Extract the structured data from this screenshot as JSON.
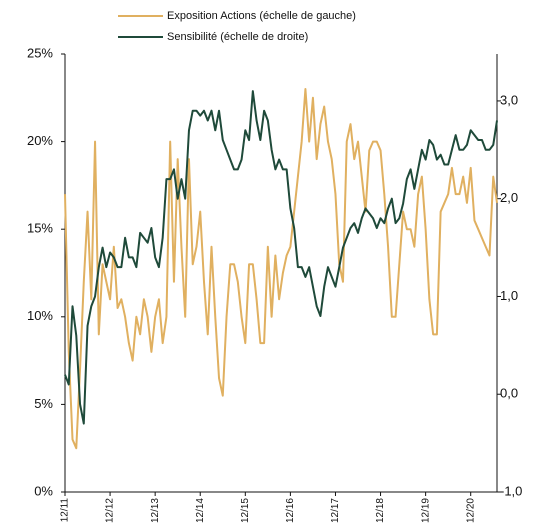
{
  "chart_data": {
    "type": "line",
    "x": [
      0,
      1,
      2,
      3,
      4,
      5,
      6,
      7,
      8,
      9,
      10,
      11,
      12,
      13,
      14,
      15,
      16,
      17,
      18,
      19,
      20,
      21,
      22,
      23,
      24,
      25,
      26,
      27,
      28,
      29,
      30,
      31,
      32,
      33,
      34,
      35,
      36,
      37,
      38,
      39,
      40,
      41,
      42,
      43,
      44,
      45,
      46,
      47,
      48,
      49,
      50,
      51,
      52,
      53,
      54,
      55,
      56,
      57,
      58,
      59,
      60,
      61,
      62,
      63,
      64,
      65,
      66,
      67,
      68,
      69,
      70,
      71,
      72,
      73,
      74,
      75,
      76,
      77,
      78,
      79,
      80,
      81,
      82,
      83,
      84,
      85,
      86,
      87,
      88,
      89,
      90,
      91,
      92,
      93,
      94,
      95,
      96,
      97,
      98,
      99,
      100,
      101,
      102,
      103,
      104,
      105,
      106,
      107,
      108,
      109,
      110,
      111,
      112,
      113,
      114,
      115
    ],
    "series": [
      {
        "name": "Exposition Actions (échelle de gauche)",
        "color": "#e0b060",
        "values": [
          17,
          8,
          3,
          2.5,
          7,
          12,
          16,
          11,
          20,
          9,
          13,
          12,
          11,
          14,
          10.5,
          11,
          10,
          8.5,
          7.5,
          10,
          9,
          11,
          10,
          8,
          10,
          11,
          8.5,
          10,
          20,
          12,
          19,
          14,
          10,
          19,
          13,
          14,
          16,
          12,
          9,
          14,
          10,
          6.5,
          5.5,
          10,
          13,
          13,
          12,
          10,
          8.5,
          13,
          13,
          11,
          8.5,
          8.5,
          14,
          10,
          13.5,
          11,
          12.5,
          13.5,
          14,
          16,
          18,
          20,
          23,
          20,
          22.5,
          19,
          21,
          22,
          20,
          19,
          17,
          13,
          12,
          20,
          21,
          19,
          20,
          18,
          16,
          19.5,
          20,
          20,
          19.5,
          17,
          14,
          10,
          10,
          13,
          16,
          15,
          15,
          14,
          17,
          18,
          15,
          11,
          9,
          9,
          16,
          16.5,
          17,
          18.5,
          17,
          17,
          18,
          16.5,
          18.5,
          15.5,
          15,
          14.5,
          14,
          13.5,
          18,
          16.5
        ]
      },
      {
        "name": "Sensibilité (échelle de droite)",
        "color": "#1f4a3a",
        "axis": "y2",
        "values": [
          0.2,
          0.1,
          0.9,
          0.6,
          -0.1,
          -0.3,
          0.7,
          0.9,
          1.0,
          1.3,
          1.5,
          1.3,
          1.45,
          1.4,
          1.3,
          1.3,
          1.6,
          1.4,
          1.4,
          1.3,
          1.65,
          1.6,
          1.55,
          1.7,
          1.4,
          1.3,
          1.6,
          2.2,
          2.2,
          2.3,
          2.0,
          2.2,
          2.0,
          2.7,
          2.9,
          2.9,
          2.85,
          2.9,
          2.8,
          2.9,
          2.7,
          2.9,
          2.6,
          2.5,
          2.4,
          2.3,
          2.3,
          2.4,
          2.7,
          2.6,
          3.1,
          2.8,
          2.6,
          2.9,
          2.8,
          2.5,
          2.3,
          2.4,
          2.3,
          2.3,
          1.9,
          1.7,
          1.3,
          1.3,
          1.2,
          1.3,
          1.1,
          0.9,
          0.8,
          1.1,
          1.3,
          1.2,
          1.1,
          1.3,
          1.5,
          1.6,
          1.7,
          1.75,
          1.65,
          1.8,
          1.9,
          1.85,
          1.8,
          1.7,
          1.8,
          1.75,
          1.9,
          2.0,
          1.75,
          1.8,
          1.95,
          2.2,
          2.3,
          2.1,
          2.3,
          2.5,
          2.4,
          2.6,
          2.55,
          2.4,
          2.45,
          2.35,
          2.35,
          2.5,
          2.65,
          2.5,
          2.5,
          2.55,
          2.7,
          2.65,
          2.6,
          2.6,
          2.5,
          2.5,
          2.55,
          2.8
        ]
      }
    ],
    "xlim": [
      0,
      115
    ],
    "xticks": [
      {
        "value": 0,
        "label": "12/11"
      },
      {
        "value": 12,
        "label": "12/12"
      },
      {
        "value": 24,
        "label": "12/13"
      },
      {
        "value": 36,
        "label": "12/14"
      },
      {
        "value": 48,
        "label": "12/15"
      },
      {
        "value": 60,
        "label": "12/16"
      },
      {
        "value": 72,
        "label": "12/17"
      },
      {
        "value": 84,
        "label": "12/18"
      },
      {
        "value": 96,
        "label": "12/19"
      },
      {
        "value": 108,
        "label": "12/20"
      }
    ],
    "ylim": [
      0,
      25
    ],
    "yticks": [
      {
        "value": 0,
        "label": "0%"
      },
      {
        "value": 5,
        "label": "5%"
      },
      {
        "value": 10,
        "label": "10%"
      },
      {
        "value": 15,
        "label": "15%"
      },
      {
        "value": 20,
        "label": "20%"
      },
      {
        "value": 25,
        "label": "25%"
      }
    ],
    "y2lim": [
      -1,
      3.48
    ],
    "y2ticks": [
      {
        "value": -1,
        "label": "-1,0"
      },
      {
        "value": 0,
        "label": "0,0"
      },
      {
        "value": 1,
        "label": "1,0"
      },
      {
        "value": 2,
        "label": "2,0"
      },
      {
        "value": 3,
        "label": "3,0"
      }
    ],
    "legend": "top"
  }
}
